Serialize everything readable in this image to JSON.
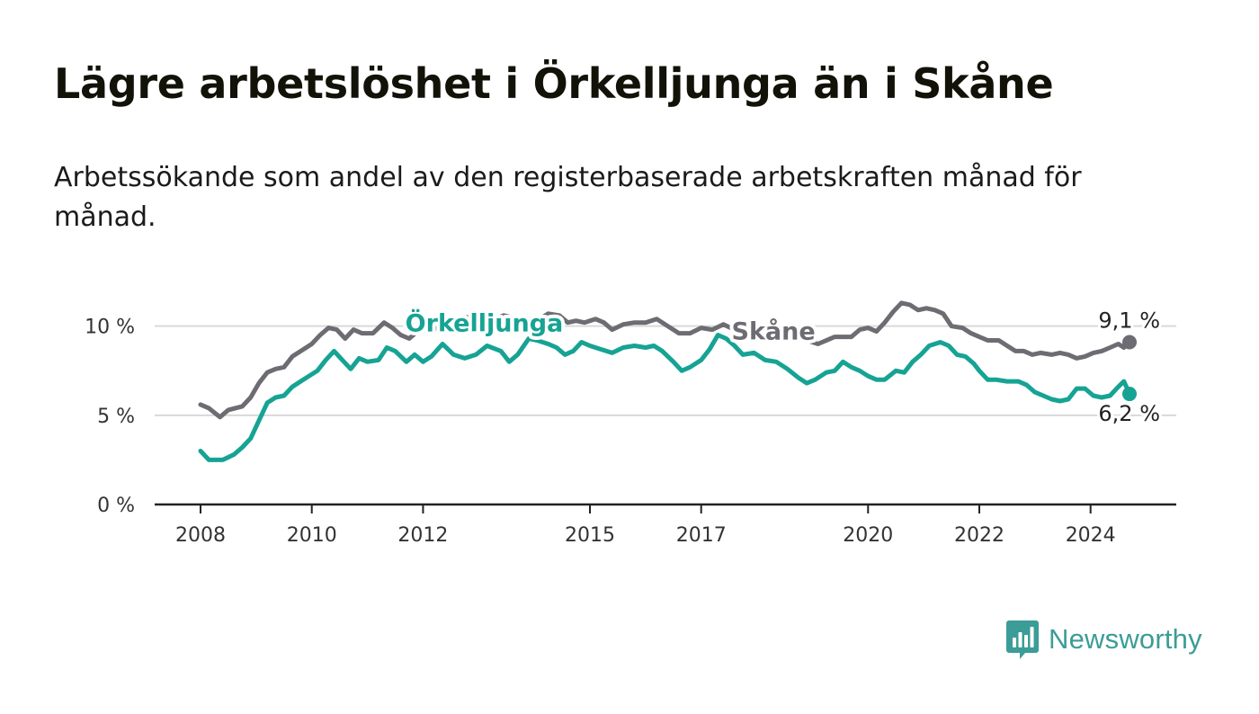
{
  "header": {
    "title": "Lägre arbetslöshet i Örkelljunga än i Skåne",
    "subtitle": "Arbetssökande som andel av den registerbaserade arbetskraften månad för månad."
  },
  "brand": {
    "name": "Newsworthy",
    "icon": "bar-chart-icon",
    "color": "#3c9c97"
  },
  "chart_data": {
    "type": "line",
    "title": "Lägre arbetslöshet i Örkelljunga än i Skåne",
    "xlabel": "",
    "ylabel": "",
    "xlim": [
      2008,
      2024.7
    ],
    "ylim": [
      0,
      12
    ],
    "grid": true,
    "yticks": [
      {
        "value": 0,
        "label": "0 %"
      },
      {
        "value": 5,
        "label": "5 %"
      },
      {
        "value": 10,
        "label": "10 %"
      }
    ],
    "xticks": [
      {
        "value": 2008,
        "label": "2008"
      },
      {
        "value": 2010,
        "label": "2010"
      },
      {
        "value": 2012,
        "label": "2012"
      },
      {
        "value": 2015,
        "label": "2015"
      },
      {
        "value": 2017,
        "label": "2017"
      },
      {
        "value": 2020,
        "label": "2020"
      },
      {
        "value": 2022,
        "label": "2022"
      },
      {
        "value": 2024,
        "label": "2024"
      }
    ],
    "series": [
      {
        "name": "Skåne",
        "color": "#6e6c73",
        "label_position": [
          2018.3,
          9.25
        ],
        "end_label": "9,1 %",
        "points": [
          [
            2008.0,
            5.6
          ],
          [
            2008.15,
            5.4
          ],
          [
            2008.35,
            4.9
          ],
          [
            2008.5,
            5.3
          ],
          [
            2008.75,
            5.5
          ],
          [
            2008.9,
            6.0
          ],
          [
            2009.05,
            6.8
          ],
          [
            2009.2,
            7.4
          ],
          [
            2009.35,
            7.6
          ],
          [
            2009.5,
            7.7
          ],
          [
            2009.65,
            8.3
          ],
          [
            2009.85,
            8.7
          ],
          [
            2010.0,
            9.0
          ],
          [
            2010.15,
            9.5
          ],
          [
            2010.3,
            9.9
          ],
          [
            2010.45,
            9.8
          ],
          [
            2010.6,
            9.3
          ],
          [
            2010.75,
            9.8
          ],
          [
            2010.9,
            9.6
          ],
          [
            2011.1,
            9.6
          ],
          [
            2011.3,
            10.2
          ],
          [
            2011.45,
            9.9
          ],
          [
            2011.6,
            9.5
          ],
          [
            2011.75,
            9.3
          ],
          [
            2011.9,
            9.7
          ],
          [
            2012.1,
            9.8
          ],
          [
            2012.3,
            9.9
          ],
          [
            2012.45,
            10.3
          ],
          [
            2012.6,
            10.2
          ],
          [
            2012.8,
            10.5
          ],
          [
            2013.0,
            10.4
          ],
          [
            2013.2,
            10.3
          ],
          [
            2013.45,
            10.6
          ],
          [
            2013.7,
            10.4
          ],
          [
            2013.85,
            10.1
          ],
          [
            2014.1,
            10.4
          ],
          [
            2014.25,
            10.7
          ],
          [
            2014.45,
            10.6
          ],
          [
            2014.6,
            10.2
          ],
          [
            2014.75,
            10.3
          ],
          [
            2014.9,
            10.2
          ],
          [
            2015.1,
            10.4
          ],
          [
            2015.25,
            10.2
          ],
          [
            2015.4,
            9.8
          ],
          [
            2015.6,
            10.1
          ],
          [
            2015.8,
            10.2
          ],
          [
            2016.0,
            10.2
          ],
          [
            2016.2,
            10.4
          ],
          [
            2016.4,
            10.0
          ],
          [
            2016.6,
            9.6
          ],
          [
            2016.8,
            9.6
          ],
          [
            2017.0,
            9.9
          ],
          [
            2017.2,
            9.8
          ],
          [
            2017.4,
            10.1
          ],
          [
            2017.6,
            9.8
          ],
          [
            2017.8,
            9.9
          ],
          [
            2018.0,
            9.8
          ],
          [
            2018.2,
            9.9
          ],
          [
            2018.5,
            9.2
          ],
          [
            2018.8,
            9.3
          ],
          [
            2019.1,
            9.0
          ],
          [
            2019.4,
            9.4
          ],
          [
            2019.7,
            9.4
          ],
          [
            2019.85,
            9.8
          ],
          [
            2020.0,
            9.9
          ],
          [
            2020.15,
            9.7
          ],
          [
            2020.3,
            10.2
          ],
          [
            2020.45,
            10.8
          ],
          [
            2020.6,
            11.3
          ],
          [
            2020.75,
            11.2
          ],
          [
            2020.9,
            10.9
          ],
          [
            2021.05,
            11.0
          ],
          [
            2021.2,
            10.9
          ],
          [
            2021.35,
            10.7
          ],
          [
            2021.5,
            10.0
          ],
          [
            2021.7,
            9.9
          ],
          [
            2021.85,
            9.6
          ],
          [
            2022.0,
            9.4
          ],
          [
            2022.15,
            9.2
          ],
          [
            2022.35,
            9.2
          ],
          [
            2022.5,
            8.9
          ],
          [
            2022.65,
            8.6
          ],
          [
            2022.8,
            8.6
          ],
          [
            2022.95,
            8.4
          ],
          [
            2023.1,
            8.5
          ],
          [
            2023.3,
            8.4
          ],
          [
            2023.45,
            8.5
          ],
          [
            2023.6,
            8.4
          ],
          [
            2023.75,
            8.2
          ],
          [
            2023.9,
            8.3
          ],
          [
            2024.05,
            8.5
          ],
          [
            2024.2,
            8.6
          ],
          [
            2024.35,
            8.8
          ],
          [
            2024.5,
            9.0
          ],
          [
            2024.6,
            8.8
          ],
          [
            2024.7,
            9.1
          ]
        ]
      },
      {
        "name": "Örkelljunga",
        "color": "#16a394",
        "label_position": [
          2013.1,
          9.7
        ],
        "end_label": "6,2 %",
        "points": [
          [
            2008.0,
            3.0
          ],
          [
            2008.15,
            2.5
          ],
          [
            2008.4,
            2.5
          ],
          [
            2008.6,
            2.8
          ],
          [
            2008.75,
            3.2
          ],
          [
            2008.9,
            3.7
          ],
          [
            2009.05,
            4.7
          ],
          [
            2009.2,
            5.7
          ],
          [
            2009.35,
            6.0
          ],
          [
            2009.5,
            6.1
          ],
          [
            2009.65,
            6.6
          ],
          [
            2009.8,
            6.9
          ],
          [
            2009.95,
            7.2
          ],
          [
            2010.1,
            7.5
          ],
          [
            2010.25,
            8.1
          ],
          [
            2010.4,
            8.6
          ],
          [
            2010.55,
            8.1
          ],
          [
            2010.7,
            7.6
          ],
          [
            2010.85,
            8.2
          ],
          [
            2011.0,
            8.0
          ],
          [
            2011.2,
            8.1
          ],
          [
            2011.35,
            8.8
          ],
          [
            2011.5,
            8.6
          ],
          [
            2011.7,
            8.0
          ],
          [
            2011.85,
            8.4
          ],
          [
            2012.0,
            8.0
          ],
          [
            2012.15,
            8.3
          ],
          [
            2012.35,
            9.0
          ],
          [
            2012.55,
            8.4
          ],
          [
            2012.75,
            8.2
          ],
          [
            2012.95,
            8.4
          ],
          [
            2013.15,
            8.9
          ],
          [
            2013.4,
            8.6
          ],
          [
            2013.55,
            8.0
          ],
          [
            2013.7,
            8.4
          ],
          [
            2013.9,
            9.3
          ],
          [
            2014.05,
            9.2
          ],
          [
            2014.25,
            9.0
          ],
          [
            2014.4,
            8.8
          ],
          [
            2014.55,
            8.4
          ],
          [
            2014.7,
            8.6
          ],
          [
            2014.85,
            9.1
          ],
          [
            2015.0,
            8.9
          ],
          [
            2015.2,
            8.7
          ],
          [
            2015.4,
            8.5
          ],
          [
            2015.6,
            8.8
          ],
          [
            2015.8,
            8.9
          ],
          [
            2016.0,
            8.8
          ],
          [
            2016.15,
            8.9
          ],
          [
            2016.3,
            8.6
          ],
          [
            2016.5,
            8.0
          ],
          [
            2016.65,
            7.5
          ],
          [
            2016.8,
            7.7
          ],
          [
            2017.0,
            8.1
          ],
          [
            2017.15,
            8.7
          ],
          [
            2017.3,
            9.5
          ],
          [
            2017.45,
            9.3
          ],
          [
            2017.6,
            8.9
          ],
          [
            2017.75,
            8.4
          ],
          [
            2017.95,
            8.5
          ],
          [
            2018.15,
            8.1
          ],
          [
            2018.35,
            8.0
          ],
          [
            2018.55,
            7.6
          ],
          [
            2018.75,
            7.1
          ],
          [
            2018.9,
            6.8
          ],
          [
            2019.05,
            7.0
          ],
          [
            2019.25,
            7.4
          ],
          [
            2019.4,
            7.5
          ],
          [
            2019.55,
            8.0
          ],
          [
            2019.7,
            7.7
          ],
          [
            2019.85,
            7.5
          ],
          [
            2020.0,
            7.2
          ],
          [
            2020.15,
            7.0
          ],
          [
            2020.3,
            7.0
          ],
          [
            2020.5,
            7.5
          ],
          [
            2020.65,
            7.4
          ],
          [
            2020.8,
            8.0
          ],
          [
            2020.95,
            8.4
          ],
          [
            2021.1,
            8.9
          ],
          [
            2021.3,
            9.1
          ],
          [
            2021.45,
            8.9
          ],
          [
            2021.6,
            8.4
          ],
          [
            2021.75,
            8.3
          ],
          [
            2021.9,
            7.9
          ],
          [
            2022.0,
            7.5
          ],
          [
            2022.15,
            7.0
          ],
          [
            2022.3,
            7.0
          ],
          [
            2022.5,
            6.9
          ],
          [
            2022.7,
            6.9
          ],
          [
            2022.85,
            6.7
          ],
          [
            2023.0,
            6.3
          ],
          [
            2023.15,
            6.1
          ],
          [
            2023.3,
            5.9
          ],
          [
            2023.45,
            5.8
          ],
          [
            2023.6,
            5.9
          ],
          [
            2023.75,
            6.5
          ],
          [
            2023.9,
            6.5
          ],
          [
            2024.05,
            6.1
          ],
          [
            2024.2,
            6.0
          ],
          [
            2024.35,
            6.1
          ],
          [
            2024.5,
            6.6
          ],
          [
            2024.6,
            6.9
          ],
          [
            2024.7,
            6.2
          ]
        ]
      }
    ]
  }
}
